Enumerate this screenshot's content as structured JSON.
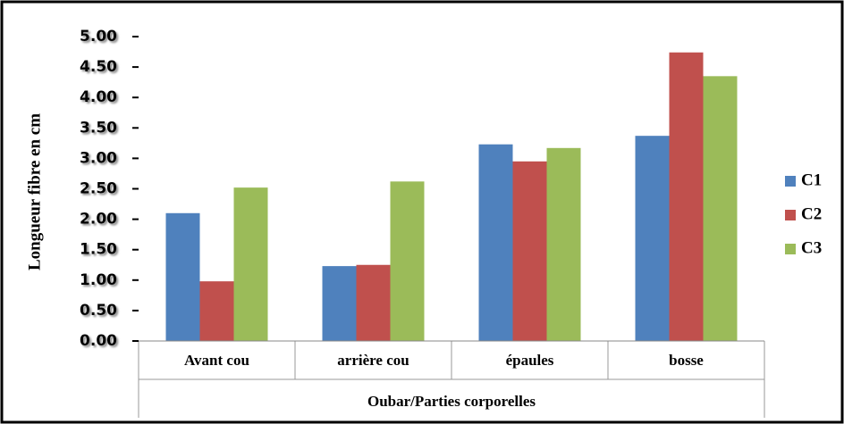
{
  "chart_data": {
    "type": "bar",
    "y_label": "Longueur fibre en cm",
    "x_label": "Oubar/Parties corporelles",
    "categories": [
      "Avant cou",
      "arrière cou",
      "épaules",
      "bosse"
    ],
    "series": [
      {
        "name": "C1",
        "color": "#4f81bd",
        "values": [
          2.1,
          1.23,
          3.23,
          3.37
        ]
      },
      {
        "name": "C2",
        "color": "#c0504d",
        "values": [
          0.98,
          1.25,
          2.95,
          4.74
        ]
      },
      {
        "name": "C3",
        "color": "#9bbb59",
        "values": [
          2.52,
          2.62,
          3.17,
          4.35
        ]
      }
    ],
    "ylim": [
      0,
      5
    ],
    "yticks": [
      {
        "value": 0,
        "label": "0.00"
      },
      {
        "value": 0.5,
        "label": "0.50"
      },
      {
        "value": 1,
        "label": "1.00"
      },
      {
        "value": 1.5,
        "label": "1.50"
      },
      {
        "value": 2,
        "label": "2.00"
      },
      {
        "value": 2.5,
        "label": "2.50"
      },
      {
        "value": 3,
        "label": "3.00"
      },
      {
        "value": 3.5,
        "label": "3.50"
      },
      {
        "value": 4,
        "label": "4.00"
      },
      {
        "value": 4.5,
        "label": "4.50"
      },
      {
        "value": 5,
        "label": "5.00"
      }
    ],
    "legend": "right",
    "grid": false
  }
}
